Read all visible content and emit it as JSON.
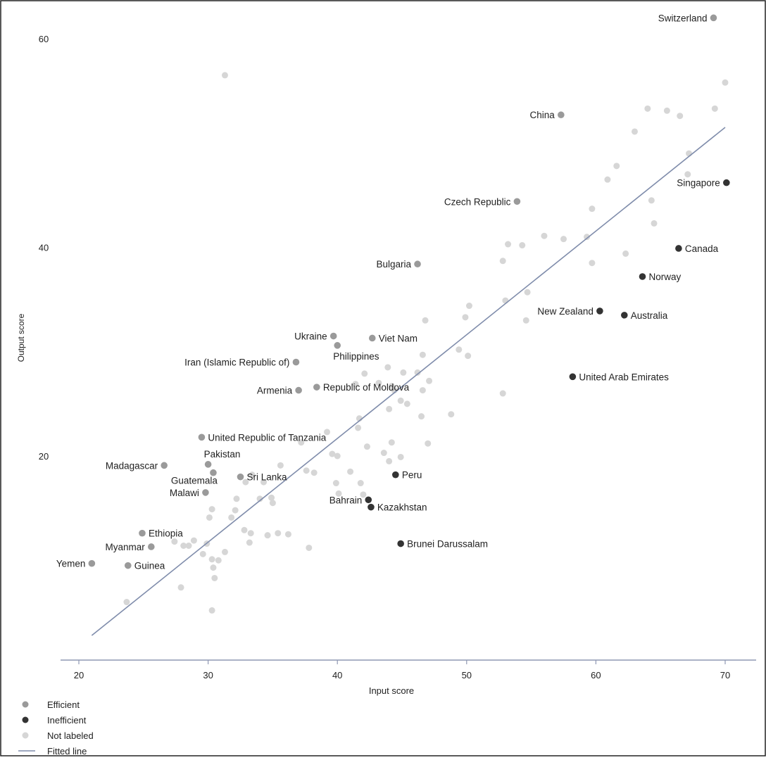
{
  "chart_data": {
    "type": "scatter",
    "xlabel": "Input score",
    "ylabel": "Output score",
    "xlim": [
      17,
      73
    ],
    "ylim": [
      0,
      63
    ],
    "xticks": [
      20,
      30,
      40,
      50,
      60,
      70
    ],
    "yticks": [
      20,
      40,
      60
    ],
    "grid": false,
    "legend_position": "bottom-left",
    "colors": {
      "efficient": "#9a9a9a",
      "inefficient": "#333333",
      "not_labeled": "#d6d6d6",
      "fitted_line": "#7f8cab",
      "axis": "#8f98b3",
      "text": "#222222"
    },
    "legend": [
      {
        "key": "efficient",
        "label": "Efficient"
      },
      {
        "key": "inefficient",
        "label": "Inefficient"
      },
      {
        "key": "not_labeled",
        "label": "Not labeled"
      },
      {
        "key": "fitted_line",
        "label": "Fitted line"
      }
    ],
    "fitted_line": {
      "start": [
        21.0,
        2.8
      ],
      "end": [
        70.0,
        51.5
      ]
    },
    "series": [
      {
        "name": "Efficient",
        "key": "efficient",
        "points": [
          {
            "label": "Switzerland",
            "x": 69.1,
            "y": 62.0,
            "anchor": "left"
          },
          {
            "label": "China",
            "x": 57.3,
            "y": 52.7,
            "anchor": "left"
          },
          {
            "label": "Czech Republic",
            "x": 53.9,
            "y": 44.4,
            "anchor": "left"
          },
          {
            "label": "Bulgaria",
            "x": 46.2,
            "y": 38.4,
            "anchor": "left"
          },
          {
            "label": "Ukraine",
            "x": 39.7,
            "y": 31.5,
            "anchor": "left"
          },
          {
            "label": "Viet Nam",
            "x": 42.7,
            "y": 31.3,
            "anchor": "right"
          },
          {
            "label": "Philippines",
            "x": 40.0,
            "y": 30.6,
            "anchor": "below"
          },
          {
            "label": "Iran (Islamic Republic of)",
            "x": 36.8,
            "y": 29.0,
            "anchor": "left"
          },
          {
            "label": "Armenia",
            "x": 37.0,
            "y": 26.3,
            "anchor": "left"
          },
          {
            "label": "Republic of Moldova",
            "x": 38.4,
            "y": 26.6,
            "anchor": "right"
          },
          {
            "label": "United Republic of Tanzania",
            "x": 29.5,
            "y": 21.8,
            "anchor": "right"
          },
          {
            "label": "Madagascar",
            "x": 26.6,
            "y": 19.1,
            "anchor": "left"
          },
          {
            "label": "Pakistan",
            "x": 30.0,
            "y": 19.2,
            "anchor": "above"
          },
          {
            "label": "Guatemala",
            "x": 30.4,
            "y": 18.4,
            "anchor": "below-left"
          },
          {
            "label": "Sri Lanka",
            "x": 32.5,
            "y": 18.0,
            "anchor": "right"
          },
          {
            "label": "Malawi",
            "x": 29.8,
            "y": 16.5,
            "anchor": "left"
          },
          {
            "label": "Ethiopia",
            "x": 24.9,
            "y": 12.6,
            "anchor": "right"
          },
          {
            "label": "Myanmar",
            "x": 25.6,
            "y": 11.3,
            "anchor": "left"
          },
          {
            "label": "Yemen",
            "x": 21.0,
            "y": 9.7,
            "anchor": "left"
          },
          {
            "label": "Guinea",
            "x": 23.8,
            "y": 9.5,
            "anchor": "right"
          }
        ]
      },
      {
        "name": "Inefficient",
        "key": "inefficient",
        "points": [
          {
            "label": "Singapore",
            "x": 70.1,
            "y": 46.2,
            "anchor": "left"
          },
          {
            "label": "Canada",
            "x": 66.4,
            "y": 39.9,
            "anchor": "right"
          },
          {
            "label": "Norway",
            "x": 63.6,
            "y": 37.2,
            "anchor": "right"
          },
          {
            "label": "New Zealand",
            "x": 60.3,
            "y": 33.9,
            "anchor": "left"
          },
          {
            "label": "Australia",
            "x": 62.2,
            "y": 33.5,
            "anchor": "right"
          },
          {
            "label": "United Arab Emirates",
            "x": 58.2,
            "y": 27.6,
            "anchor": "right"
          },
          {
            "label": "Peru",
            "x": 44.5,
            "y": 18.2,
            "anchor": "right"
          },
          {
            "label": "Bahrain",
            "x": 42.4,
            "y": 15.8,
            "anchor": "left"
          },
          {
            "label": "Kazakhstan",
            "x": 42.6,
            "y": 15.1,
            "anchor": "right"
          },
          {
            "label": "Brunei Darussalam",
            "x": 44.9,
            "y": 11.6,
            "anchor": "right"
          }
        ]
      },
      {
        "name": "Not labeled",
        "key": "not_labeled",
        "points": [
          {
            "x": 70.0,
            "y": 55.8
          },
          {
            "x": 69.2,
            "y": 53.3
          },
          {
            "x": 66.5,
            "y": 52.6
          },
          {
            "x": 65.5,
            "y": 53.1
          },
          {
            "x": 64.0,
            "y": 53.3
          },
          {
            "x": 63.0,
            "y": 51.1
          },
          {
            "x": 67.2,
            "y": 49.0
          },
          {
            "x": 67.1,
            "y": 47.0
          },
          {
            "x": 61.6,
            "y": 47.8
          },
          {
            "x": 60.9,
            "y": 46.5
          },
          {
            "x": 64.3,
            "y": 44.5
          },
          {
            "x": 59.7,
            "y": 43.7
          },
          {
            "x": 64.5,
            "y": 42.3
          },
          {
            "x": 56.0,
            "y": 41.1
          },
          {
            "x": 57.5,
            "y": 40.8
          },
          {
            "x": 59.3,
            "y": 41.0
          },
          {
            "x": 53.2,
            "y": 40.3
          },
          {
            "x": 54.3,
            "y": 40.2
          },
          {
            "x": 62.3,
            "y": 39.4
          },
          {
            "x": 59.7,
            "y": 38.5
          },
          {
            "x": 52.8,
            "y": 38.7
          },
          {
            "x": 53.0,
            "y": 34.9
          },
          {
            "x": 54.7,
            "y": 35.7
          },
          {
            "x": 50.2,
            "y": 34.4
          },
          {
            "x": 49.9,
            "y": 33.3
          },
          {
            "x": 46.8,
            "y": 33.0
          },
          {
            "x": 54.6,
            "y": 33.0
          },
          {
            "x": 49.4,
            "y": 30.2
          },
          {
            "x": 50.1,
            "y": 29.6
          },
          {
            "x": 46.6,
            "y": 29.7
          },
          {
            "x": 43.9,
            "y": 28.5
          },
          {
            "x": 45.1,
            "y": 28.0
          },
          {
            "x": 42.1,
            "y": 27.9
          },
          {
            "x": 46.2,
            "y": 28.0
          },
          {
            "x": 41.4,
            "y": 26.9
          },
          {
            "x": 43.2,
            "y": 27.0
          },
          {
            "x": 44.2,
            "y": 26.7
          },
          {
            "x": 47.1,
            "y": 27.2
          },
          {
            "x": 44.4,
            "y": 26.3
          },
          {
            "x": 46.6,
            "y": 26.3
          },
          {
            "x": 44.9,
            "y": 25.3
          },
          {
            "x": 45.4,
            "y": 25.0
          },
          {
            "x": 44.0,
            "y": 24.5
          },
          {
            "x": 46.5,
            "y": 23.8
          },
          {
            "x": 48.8,
            "y": 24.0
          },
          {
            "x": 41.7,
            "y": 23.6
          },
          {
            "x": 41.6,
            "y": 22.7
          },
          {
            "x": 39.2,
            "y": 22.3
          },
          {
            "x": 37.2,
            "y": 21.3
          },
          {
            "x": 47.0,
            "y": 21.2
          },
          {
            "x": 44.2,
            "y": 21.3
          },
          {
            "x": 42.3,
            "y": 20.9
          },
          {
            "x": 39.6,
            "y": 20.2
          },
          {
            "x": 40.0,
            "y": 20.0
          },
          {
            "x": 43.6,
            "y": 20.3
          },
          {
            "x": 44.9,
            "y": 19.9
          },
          {
            "x": 44.0,
            "y": 19.5
          },
          {
            "x": 35.6,
            "y": 19.1
          },
          {
            "x": 37.6,
            "y": 18.6
          },
          {
            "x": 38.2,
            "y": 18.4
          },
          {
            "x": 41.0,
            "y": 18.5
          },
          {
            "x": 33.4,
            "y": 18.2
          },
          {
            "x": 32.9,
            "y": 17.5
          },
          {
            "x": 34.3,
            "y": 17.5
          },
          {
            "x": 39.9,
            "y": 17.4
          },
          {
            "x": 41.8,
            "y": 17.4
          },
          {
            "x": 40.1,
            "y": 16.4
          },
          {
            "x": 32.2,
            "y": 15.9
          },
          {
            "x": 34.0,
            "y": 15.9
          },
          {
            "x": 34.9,
            "y": 16.0
          },
          {
            "x": 35.0,
            "y": 15.5
          },
          {
            "x": 30.3,
            "y": 14.9
          },
          {
            "x": 32.1,
            "y": 14.8
          },
          {
            "x": 31.8,
            "y": 14.1
          },
          {
            "x": 30.1,
            "y": 14.1
          },
          {
            "x": 32.8,
            "y": 12.9
          },
          {
            "x": 33.3,
            "y": 12.6
          },
          {
            "x": 34.6,
            "y": 12.4
          },
          {
            "x": 35.4,
            "y": 12.6
          },
          {
            "x": 36.2,
            "y": 12.5
          },
          {
            "x": 27.4,
            "y": 11.8
          },
          {
            "x": 28.1,
            "y": 11.4
          },
          {
            "x": 28.9,
            "y": 11.9
          },
          {
            "x": 28.5,
            "y": 11.4
          },
          {
            "x": 29.9,
            "y": 11.6
          },
          {
            "x": 33.2,
            "y": 11.7
          },
          {
            "x": 37.8,
            "y": 11.2
          },
          {
            "x": 31.3,
            "y": 10.8
          },
          {
            "x": 29.6,
            "y": 10.6
          },
          {
            "x": 30.3,
            "y": 10.1
          },
          {
            "x": 30.8,
            "y": 10.0
          },
          {
            "x": 30.4,
            "y": 9.3
          },
          {
            "x": 30.5,
            "y": 8.3
          },
          {
            "x": 27.9,
            "y": 7.4
          },
          {
            "x": 23.7,
            "y": 6.0
          },
          {
            "x": 30.3,
            "y": 5.2
          },
          {
            "x": 31.3,
            "y": 56.5
          },
          {
            "x": 42.0,
            "y": 16.3
          },
          {
            "x": 52.8,
            "y": 26.0
          }
        ]
      }
    ]
  }
}
